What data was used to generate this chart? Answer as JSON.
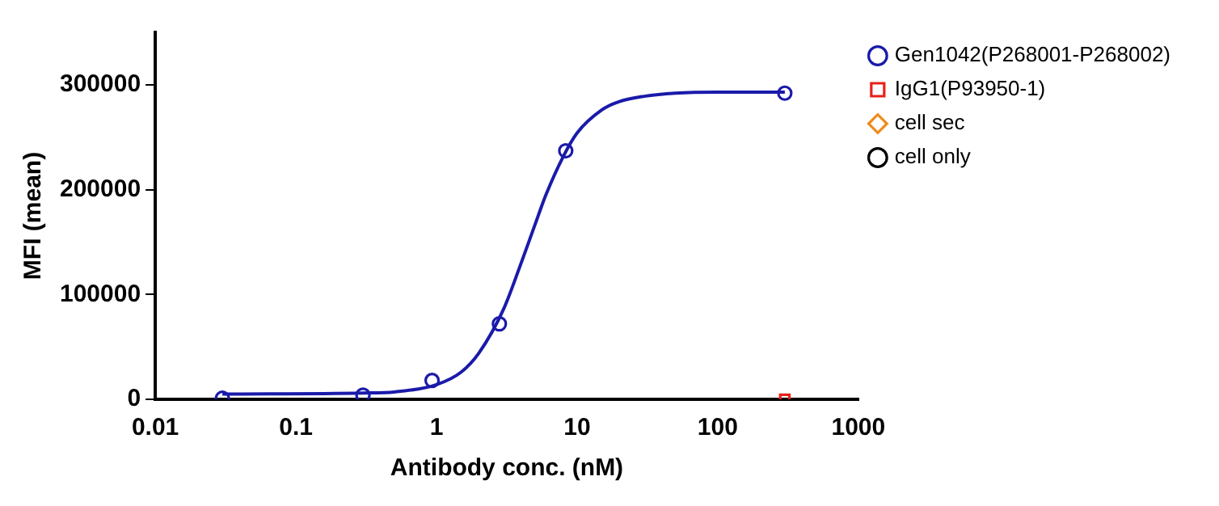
{
  "chart_data": {
    "type": "scatter",
    "xlabel": "Antibody conc. (nM)",
    "ylabel": "MFI (mean)",
    "log": "x",
    "xlim": [
      0.01,
      1000
    ],
    "xticks": [
      0.01,
      0.1,
      1,
      10,
      100,
      1000
    ],
    "ylim": [
      0,
      350000
    ],
    "yticks": [
      0,
      100000,
      200000,
      300000
    ],
    "grid": false,
    "legend": "right",
    "series": [
      {
        "name": "Gen1042(P268001-P268002)",
        "color": "#1a1aaa",
        "marker": "circle",
        "x": [
          0.03,
          0.3,
          0.93,
          2.8,
          8.3,
          300
        ],
        "values": [
          1000,
          4000,
          18000,
          72000,
          237000,
          292000
        ]
      },
      {
        "name": "IgG1(P93950-1)",
        "color": "#e8211a",
        "marker": "square",
        "x": [
          300
        ],
        "values": [
          0
        ]
      },
      {
        "name": "cell sec",
        "color": "#f08a1c",
        "marker": "diamond"
      },
      {
        "name": "cell only",
        "color": "#000000",
        "marker": "circle"
      },
      {
        "type": "line",
        "color": "#1a1aaa",
        "marker": "none",
        "x": [
          0.03,
          0.3,
          0.5,
          1,
          1.5,
          2,
          3,
          4,
          5,
          6,
          8,
          10,
          15,
          20,
          30,
          50,
          100,
          300
        ],
        "values": [
          5000,
          6000,
          7000,
          14000,
          26000,
          44000,
          86000,
          130000,
          166000,
          195000,
          232000,
          254000,
          276000,
          284000,
          289000,
          292000,
          293000,
          293000
        ]
      }
    ]
  }
}
